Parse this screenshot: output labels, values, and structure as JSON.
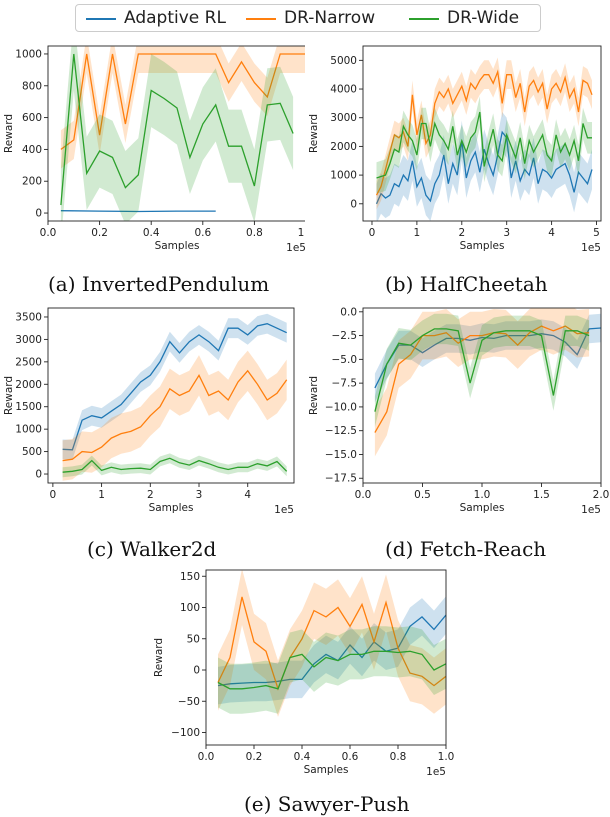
{
  "legend": [
    "Adaptive RL",
    "DR-Narrow",
    "DR-Wide"
  ],
  "colors": {
    "Adaptive RL": "#1f77b4",
    "DR-Narrow": "#ff7f0e",
    "DR-Wide": "#2ca02c"
  },
  "chart_data": [
    {
      "type": "line",
      "caption": "(a) InvertedPendulum",
      "xlabel": "Samples",
      "ylabel": "Reward",
      "x_exponent": "1e5",
      "xlim": [
        0,
        1.0
      ],
      "ylim": [
        -50,
        1050
      ],
      "xticks": [
        0.0,
        0.2,
        0.4,
        0.6,
        0.8,
        1.0
      ],
      "xtick_labels": [
        "0.0",
        "0.2",
        "0.4",
        "0.6",
        "0.8",
        "1.0"
      ],
      "yticks": [
        0,
        200,
        400,
        600,
        800,
        1000
      ],
      "ytick_labels": [
        "0",
        "200",
        "400",
        "600",
        "800",
        "1000"
      ],
      "series": [
        {
          "name": "Adaptive RL",
          "x": [
            0.05,
            0.2,
            0.35,
            0.5,
            0.65
          ],
          "y": [
            15,
            12,
            10,
            12,
            12
          ],
          "band": 3
        },
        {
          "name": "DR-Narrow",
          "x": [
            0.05,
            0.1,
            0.15,
            0.2,
            0.25,
            0.3,
            0.35,
            0.4,
            0.45,
            0.5,
            0.55,
            0.6,
            0.65,
            0.7,
            0.75,
            0.8,
            0.85,
            0.9,
            0.95,
            1.0
          ],
          "y": [
            400,
            460,
            1000,
            490,
            1000,
            560,
            1000,
            1000,
            1000,
            1000,
            1000,
            1000,
            1000,
            820,
            950,
            820,
            730,
            1000,
            1000,
            1000
          ],
          "band": 120
        },
        {
          "name": "DR-Wide",
          "x": [
            0.05,
            0.1,
            0.15,
            0.2,
            0.25,
            0.3,
            0.35,
            0.4,
            0.45,
            0.5,
            0.55,
            0.6,
            0.65,
            0.7,
            0.75,
            0.8,
            0.85,
            0.9,
            0.95
          ],
          "y": [
            50,
            1000,
            250,
            390,
            350,
            160,
            240,
            770,
            720,
            660,
            350,
            560,
            680,
            420,
            420,
            170,
            680,
            690,
            500
          ],
          "band": 230
        }
      ]
    },
    {
      "type": "line",
      "caption": "(b) HalfCheetah",
      "xlabel": "Samples",
      "ylabel": "Reward",
      "x_exponent": "1e5",
      "xlim": [
        -0.2,
        5.1
      ],
      "ylim": [
        -600,
        5500
      ],
      "xticks": [
        0,
        1,
        2,
        3,
        4,
        5
      ],
      "xtick_labels": [
        "0",
        "1",
        "2",
        "3",
        "4",
        "5"
      ],
      "yticks": [
        0,
        1000,
        2000,
        3000,
        4000,
        5000
      ],
      "ytick_labels": [
        "0",
        "1000",
        "2000",
        "3000",
        "4000",
        "5000"
      ],
      "series": [
        {
          "name": "Adaptive RL",
          "x": [
            0.1,
            0.2,
            0.3,
            0.4,
            0.5,
            0.6,
            0.7,
            0.8,
            0.9,
            1.0,
            1.1,
            1.2,
            1.3,
            1.4,
            1.5,
            1.6,
            1.7,
            1.8,
            1.9,
            2.0,
            2.1,
            2.2,
            2.3,
            2.4,
            2.5,
            2.6,
            2.7,
            2.8,
            2.9,
            3.0,
            3.1,
            3.2,
            3.3,
            3.4,
            3.5,
            3.6,
            3.7,
            3.8,
            3.9,
            4.0,
            4.1,
            4.2,
            4.3,
            4.4,
            4.5,
            4.6,
            4.7,
            4.8,
            4.9
          ],
          "y": [
            0,
            350,
            200,
            300,
            700,
            600,
            1000,
            800,
            1500,
            600,
            900,
            300,
            100,
            700,
            1000,
            1700,
            700,
            1400,
            1000,
            2200,
            900,
            1500,
            1800,
            1100,
            1900,
            1400,
            1000,
            1700,
            2500,
            2300,
            900,
            1500,
            800,
            1200,
            1000,
            1600,
            700,
            1200,
            1100,
            900,
            1200,
            1300,
            1400,
            1000,
            400,
            1100,
            900,
            700,
            1200
          ],
          "band": 700
        },
        {
          "name": "DR-Narrow",
          "x": [
            0.1,
            0.2,
            0.3,
            0.4,
            0.5,
            0.6,
            0.7,
            0.8,
            0.9,
            1.0,
            1.1,
            1.2,
            1.3,
            1.4,
            1.5,
            1.6,
            1.7,
            1.8,
            1.9,
            2.0,
            2.1,
            2.2,
            2.3,
            2.4,
            2.5,
            2.6,
            2.7,
            2.8,
            2.9,
            3.0,
            3.1,
            3.2,
            3.3,
            3.4,
            3.5,
            3.6,
            3.7,
            3.8,
            3.9,
            4.0,
            4.1,
            4.2,
            4.3,
            4.4,
            4.5,
            4.6,
            4.7,
            4.8,
            4.9
          ],
          "y": [
            300,
            600,
            1200,
            1800,
            2400,
            2300,
            2500,
            2000,
            3800,
            2400,
            3100,
            2100,
            2400,
            3500,
            3900,
            3700,
            4000,
            3500,
            3800,
            4100,
            3600,
            4200,
            4000,
            4300,
            4500,
            4500,
            4200,
            4600,
            3500,
            4500,
            4500,
            3700,
            4200,
            3200,
            4100,
            4300,
            3900,
            4200,
            3300,
            4000,
            4200,
            3900,
            4400,
            3700,
            4000,
            3200,
            4300,
            4200,
            3800
          ],
          "band": 500
        },
        {
          "name": "DR-Wide",
          "x": [
            0.1,
            0.2,
            0.3,
            0.4,
            0.5,
            0.6,
            0.7,
            0.8,
            0.9,
            1.0,
            1.1,
            1.2,
            1.3,
            1.4,
            1.5,
            1.6,
            1.7,
            1.8,
            1.9,
            2.0,
            2.1,
            2.2,
            2.3,
            2.4,
            2.5,
            2.6,
            2.7,
            2.8,
            2.9,
            3.0,
            3.1,
            3.2,
            3.3,
            3.4,
            3.5,
            3.6,
            3.7,
            3.8,
            3.9,
            4.0,
            4.1,
            4.2,
            4.3,
            4.4,
            4.5,
            4.6,
            4.7,
            4.8,
            4.9
          ],
          "y": [
            900,
            950,
            1000,
            1400,
            1900,
            1800,
            2700,
            2400,
            2200,
            1700,
            2800,
            2800,
            2000,
            2800,
            2400,
            2200,
            1900,
            2700,
            1700,
            2200,
            1800,
            2300,
            2500,
            3200,
            1300,
            2000,
            2600,
            1700,
            1500,
            2400,
            2000,
            1600,
            2300,
            1400,
            2200,
            1800,
            2100,
            2400,
            1700,
            1500,
            2400,
            1800,
            2100,
            1700,
            2200,
            1500,
            2800,
            2300,
            2300
          ],
          "band": 550
        }
      ]
    },
    {
      "type": "line",
      "caption": "(c) Walker2d",
      "xlabel": "Samples",
      "ylabel": "Reward",
      "x_exponent": "1e5",
      "xlim": [
        -0.1,
        4.95
      ],
      "ylim": [
        -200,
        3700
      ],
      "xticks": [
        0,
        1,
        2,
        3,
        4
      ],
      "xtick_labels": [
        "0",
        "1",
        "2",
        "3",
        "4"
      ],
      "yticks": [
        0,
        500,
        1000,
        1500,
        2000,
        2500,
        3000,
        3500
      ],
      "ytick_labels": [
        "0",
        "500",
        "1000",
        "1500",
        "2000",
        "2500",
        "3000",
        "3500"
      ],
      "series": [
        {
          "name": "Adaptive RL",
          "x": [
            0.2,
            0.4,
            0.6,
            0.8,
            1.0,
            1.2,
            1.4,
            1.6,
            1.8,
            2.0,
            2.2,
            2.4,
            2.6,
            2.8,
            3.0,
            3.2,
            3.4,
            3.6,
            3.8,
            4.0,
            4.2,
            4.4,
            4.6,
            4.8
          ],
          "y": [
            550,
            540,
            1200,
            1300,
            1250,
            1400,
            1550,
            1800,
            2050,
            2200,
            2500,
            2950,
            2700,
            2950,
            3100,
            2950,
            2750,
            3250,
            3250,
            3100,
            3300,
            3350,
            3250,
            3150
          ],
          "band": 220
        },
        {
          "name": "DR-Narrow",
          "x": [
            0.2,
            0.4,
            0.6,
            0.8,
            1.0,
            1.2,
            1.4,
            1.6,
            1.8,
            2.0,
            2.2,
            2.4,
            2.6,
            2.8,
            3.0,
            3.2,
            3.4,
            3.6,
            3.8,
            4.0,
            4.2,
            4.4,
            4.6,
            4.8
          ],
          "y": [
            300,
            330,
            500,
            480,
            600,
            800,
            900,
            950,
            1050,
            1300,
            1500,
            1900,
            1750,
            1850,
            2200,
            1750,
            1850,
            1650,
            2050,
            2300,
            2000,
            1650,
            1800,
            2100
          ],
          "band": 450
        },
        {
          "name": "DR-Wide",
          "x": [
            0.2,
            0.4,
            0.6,
            0.8,
            1.0,
            1.2,
            1.4,
            1.6,
            1.8,
            2.0,
            2.2,
            2.4,
            2.6,
            2.8,
            3.0,
            3.2,
            3.4,
            3.6,
            3.8,
            4.0,
            4.2,
            4.4,
            4.6,
            4.8
          ],
          "y": [
            40,
            60,
            100,
            300,
            80,
            150,
            100,
            120,
            130,
            100,
            280,
            350,
            250,
            200,
            300,
            230,
            150,
            100,
            150,
            150,
            230,
            180,
            280,
            60
          ],
          "band": 110
        }
      ]
    },
    {
      "type": "line",
      "caption": "(d) Fetch-Reach",
      "xlabel": "Samples",
      "ylabel": "Reward",
      "x_exponent": "1e5",
      "xlim": [
        0,
        2.0
      ],
      "ylim": [
        -18,
        0.4
      ],
      "xticks": [
        0.0,
        0.5,
        1.0,
        1.5,
        2.0
      ],
      "xtick_labels": [
        "0.0",
        "0.5",
        "1.0",
        "1.5",
        "2.0"
      ],
      "yticks": [
        0.0,
        -2.5,
        -5.0,
        -7.5,
        -10.0,
        -12.5,
        -15.0,
        -17.5
      ],
      "ytick_labels": [
        "0.0",
        "−2.5",
        "−5.0",
        "−7.5",
        "−10.0",
        "−12.5",
        "−15.0",
        "−17.5"
      ],
      "series": [
        {
          "name": "Adaptive RL",
          "x": [
            0.1,
            0.2,
            0.3,
            0.4,
            0.5,
            0.6,
            0.7,
            0.8,
            0.9,
            1.0,
            1.1,
            1.2,
            1.3,
            1.4,
            1.5,
            1.6,
            1.7,
            1.8,
            1.9,
            2.0
          ],
          "y": [
            -8.0,
            -5.5,
            -3.5,
            -3.5,
            -4.3,
            -3.5,
            -2.8,
            -2.8,
            -3.0,
            -2.7,
            -2.8,
            -2.5,
            -2.5,
            -2.5,
            -2.3,
            -2.5,
            -3.2,
            -4.5,
            -1.8,
            -1.7
          ],
          "band": 1.5
        },
        {
          "name": "DR-Narrow",
          "x": [
            0.1,
            0.2,
            0.3,
            0.4,
            0.5,
            0.6,
            0.7,
            0.8,
            0.9,
            1.0,
            1.1,
            1.2,
            1.3,
            1.4,
            1.5,
            1.6,
            1.7,
            1.8,
            1.9
          ],
          "y": [
            -12.7,
            -10.5,
            -5.5,
            -4.5,
            -2.5,
            -2.5,
            -2.2,
            -3.3,
            -2.5,
            -2.5,
            -2.2,
            -2.3,
            -3.5,
            -2.2,
            -1.5,
            -2.0,
            -1.5,
            -2.3,
            -2.2
          ],
          "band": 2.5
        },
        {
          "name": "DR-Wide",
          "x": [
            0.1,
            0.2,
            0.3,
            0.4,
            0.5,
            0.6,
            0.7,
            0.8,
            0.9,
            1.0,
            1.1,
            1.2,
            1.3,
            1.4,
            1.5,
            1.6,
            1.7,
            1.8,
            1.9
          ],
          "y": [
            -10.5,
            -5.5,
            -3.3,
            -3.5,
            -2.5,
            -1.8,
            -1.8,
            -2.0,
            -7.5,
            -3.0,
            -2.2,
            -2.0,
            -2.0,
            -2.0,
            -2.5,
            -8.8,
            -2.0,
            -2.0,
            -2.5
          ],
          "band": 1.6
        }
      ]
    },
    {
      "type": "line",
      "caption": "(e) Sawyer-Push",
      "xlabel": "Samples",
      "ylabel": "Reward",
      "x_exponent": "1e5",
      "xlim": [
        0,
        1.0
      ],
      "ylim": [
        -120,
        160
      ],
      "xticks": [
        0.0,
        0.2,
        0.4,
        0.6,
        0.8,
        1.0
      ],
      "xtick_labels": [
        "0.0",
        "0.2",
        "0.4",
        "0.6",
        "0.8",
        "1.0"
      ],
      "yticks": [
        -100,
        -50,
        0,
        50,
        100,
        150
      ],
      "ytick_labels": [
        "−100",
        "−50",
        "0",
        "50",
        "100",
        "150"
      ],
      "series": [
        {
          "name": "Adaptive RL",
          "x": [
            0.05,
            0.1,
            0.15,
            0.2,
            0.25,
            0.3,
            0.35,
            0.4,
            0.45,
            0.5,
            0.55,
            0.6,
            0.65,
            0.7,
            0.75,
            0.8,
            0.85,
            0.9,
            0.95,
            1.0
          ],
          "y": [
            -25,
            -22,
            -21,
            -20,
            -20,
            -18,
            -15,
            -15,
            10,
            25,
            15,
            40,
            20,
            45,
            30,
            35,
            70,
            85,
            65,
            88
          ],
          "band": 30
        },
        {
          "name": "DR-Narrow",
          "x": [
            0.05,
            0.1,
            0.15,
            0.2,
            0.25,
            0.3,
            0.35,
            0.4,
            0.45,
            0.5,
            0.55,
            0.6,
            0.65,
            0.7,
            0.75,
            0.8,
            0.85,
            0.9,
            0.95,
            1.0
          ],
          "y": [
            -20,
            20,
            117,
            45,
            30,
            -30,
            20,
            50,
            95,
            85,
            100,
            70,
            105,
            45,
            108,
            35,
            -5,
            -10,
            -25,
            -10
          ],
          "band": 45
        },
        {
          "name": "DR-Wide",
          "x": [
            0.05,
            0.1,
            0.15,
            0.2,
            0.25,
            0.3,
            0.35,
            0.4,
            0.45,
            0.5,
            0.55,
            0.6,
            0.65,
            0.7,
            0.75,
            0.8,
            0.85,
            0.9,
            0.95,
            1.0
          ],
          "y": [
            -20,
            -30,
            -30,
            -28,
            -25,
            -30,
            20,
            25,
            5,
            20,
            15,
            25,
            25,
            30,
            30,
            28,
            30,
            25,
            0,
            10
          ],
          "band": 40
        }
      ]
    }
  ]
}
